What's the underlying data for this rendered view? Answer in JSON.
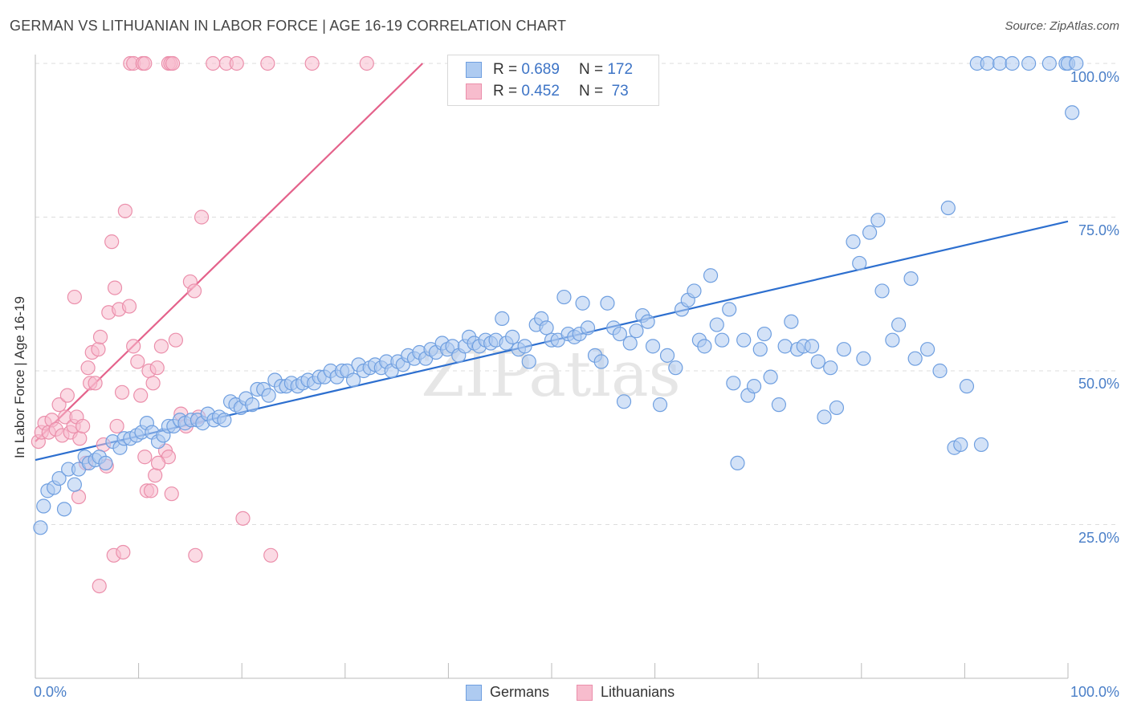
{
  "header": {
    "title": "GERMAN VS LITHUANIAN IN LABOR FORCE | AGE 16-19 CORRELATION CHART",
    "source": "Source: ZipAtlas.com"
  },
  "watermark": "ZIPatlas",
  "colors": {
    "german_fill": "#aecbf1",
    "german_stroke": "#6f9fe0",
    "german_line": "#2d6fcf",
    "lithuanian_fill": "#f7bccd",
    "lithuanian_stroke": "#eb8fab",
    "lithuanian_line": "#e4628b",
    "tick_text": "#4a7fc8",
    "grid": "#dddddd"
  },
  "legend": {
    "rows": [
      {
        "r_label": "R =",
        "r_value": "0.689",
        "n_label": "N =",
        "n_value": "172"
      },
      {
        "r_label": "R =",
        "r_value": "0.452",
        "n_label": "N =",
        "n_value": " 73"
      }
    ],
    "items": [
      "Germans",
      "Lithuanians"
    ]
  },
  "chart_data": {
    "type": "scatter",
    "title": "GERMAN VS LITHUANIAN IN LABOR FORCE | AGE 16-19 CORRELATION CHART",
    "xlabel": "",
    "ylabel": "In Labor Force | Age 16-19",
    "xlim": [
      0,
      100
    ],
    "ylim": [
      0,
      100
    ],
    "x_tick_labels": [
      "0.0%",
      "100.0%"
    ],
    "y_tick_labels": [
      "25.0%",
      "50.0%",
      "75.0%",
      "100.0%"
    ],
    "y_ticks": [
      25,
      50,
      75,
      100
    ],
    "grid": true,
    "legend_position": "top-center",
    "series": [
      {
        "name": "Germans",
        "trend": {
          "x": [
            0,
            100
          ],
          "y": [
            35.5,
            74.3
          ]
        },
        "points": [
          [
            0.5,
            24.5
          ],
          [
            0.8,
            28
          ],
          [
            1.2,
            30.5
          ],
          [
            1.8,
            31
          ],
          [
            2.3,
            32.5
          ],
          [
            2.8,
            27.5
          ],
          [
            3.2,
            34
          ],
          [
            3.8,
            31.5
          ],
          [
            4.2,
            34
          ],
          [
            4.8,
            36
          ],
          [
            5.2,
            35
          ],
          [
            5.8,
            35.5
          ],
          [
            6.2,
            36
          ],
          [
            6.8,
            35
          ],
          [
            7.5,
            38.5
          ],
          [
            8.2,
            37.5
          ],
          [
            8.6,
            39
          ],
          [
            9.2,
            39
          ],
          [
            9.8,
            39.5
          ],
          [
            10.3,
            40
          ],
          [
            10.8,
            41.5
          ],
          [
            11.3,
            40
          ],
          [
            11.9,
            38.5
          ],
          [
            12.4,
            39.5
          ],
          [
            12.9,
            41
          ],
          [
            13.4,
            41
          ],
          [
            14,
            42
          ],
          [
            14.5,
            41.5
          ],
          [
            15.1,
            42
          ],
          [
            15.7,
            42
          ],
          [
            16.2,
            41.5
          ],
          [
            16.7,
            43
          ],
          [
            17.3,
            42
          ],
          [
            17.8,
            42.5
          ],
          [
            18.3,
            42
          ],
          [
            18.9,
            45
          ],
          [
            19.4,
            44.5
          ],
          [
            19.9,
            44
          ],
          [
            20.4,
            45.5
          ],
          [
            21,
            44.5
          ],
          [
            21.5,
            47
          ],
          [
            22.1,
            47
          ],
          [
            22.6,
            46
          ],
          [
            23.2,
            48.5
          ],
          [
            23.8,
            47.5
          ],
          [
            24.3,
            47.5
          ],
          [
            24.8,
            48
          ],
          [
            25.4,
            47.5
          ],
          [
            25.9,
            48
          ],
          [
            26.4,
            48.5
          ],
          [
            27,
            48
          ],
          [
            27.5,
            49
          ],
          [
            28,
            49
          ],
          [
            28.6,
            50
          ],
          [
            29.2,
            49
          ],
          [
            29.7,
            50
          ],
          [
            30.2,
            50
          ],
          [
            30.8,
            48.5
          ],
          [
            31.3,
            51
          ],
          [
            31.8,
            50
          ],
          [
            32.4,
            50.5
          ],
          [
            32.9,
            51
          ],
          [
            33.5,
            50.5
          ],
          [
            34,
            51.5
          ],
          [
            34.5,
            50
          ],
          [
            35.1,
            51.5
          ],
          [
            35.6,
            51
          ],
          [
            36.1,
            52.5
          ],
          [
            36.7,
            52
          ],
          [
            37.2,
            53
          ],
          [
            37.8,
            52
          ],
          [
            38.3,
            53.5
          ],
          [
            38.8,
            53
          ],
          [
            39.4,
            54.5
          ],
          [
            39.9,
            53.5
          ],
          [
            40.4,
            54
          ],
          [
            41,
            52.5
          ],
          [
            41.6,
            54
          ],
          [
            42,
            55.5
          ],
          [
            42.5,
            54.5
          ],
          [
            43,
            54
          ],
          [
            43.6,
            55
          ],
          [
            44.1,
            54.5
          ],
          [
            44.6,
            55
          ],
          [
            45.2,
            58.5
          ],
          [
            45.6,
            54.5
          ],
          [
            46.2,
            55.5
          ],
          [
            46.8,
            53.5
          ],
          [
            47.4,
            54
          ],
          [
            47.8,
            51.5
          ],
          [
            48.5,
            57.5
          ],
          [
            49,
            58.5
          ],
          [
            49.5,
            57
          ],
          [
            50,
            55
          ],
          [
            50.6,
            55
          ],
          [
            51.2,
            62
          ],
          [
            51.6,
            56
          ],
          [
            52.2,
            55.5
          ],
          [
            52.7,
            56
          ],
          [
            53,
            61
          ],
          [
            53.5,
            57
          ],
          [
            54.2,
            52.5
          ],
          [
            54.8,
            51.5
          ],
          [
            55.4,
            61
          ],
          [
            56,
            57
          ],
          [
            56.6,
            56
          ],
          [
            57,
            45
          ],
          [
            57.6,
            54.5
          ],
          [
            58.2,
            56.5
          ],
          [
            58.8,
            59
          ],
          [
            59.3,
            58
          ],
          [
            59.8,
            54
          ],
          [
            60.5,
            44.5
          ],
          [
            61.2,
            52.5
          ],
          [
            62,
            50.5
          ],
          [
            62.6,
            60
          ],
          [
            63.2,
            61.5
          ],
          [
            63.8,
            63
          ],
          [
            64.3,
            55
          ],
          [
            64.8,
            54
          ],
          [
            65.4,
            65.5
          ],
          [
            66,
            57.5
          ],
          [
            66.5,
            55
          ],
          [
            67.2,
            60
          ],
          [
            67.6,
            48
          ],
          [
            68,
            35
          ],
          [
            68.6,
            55
          ],
          [
            69,
            46
          ],
          [
            69.6,
            47.5
          ],
          [
            70.2,
            53.5
          ],
          [
            70.6,
            56
          ],
          [
            71.2,
            49
          ],
          [
            72,
            44.5
          ],
          [
            72.6,
            54
          ],
          [
            73.2,
            58
          ],
          [
            73.8,
            53.5
          ],
          [
            74.4,
            54
          ],
          [
            75.2,
            54
          ],
          [
            75.8,
            51.5
          ],
          [
            76.4,
            42.5
          ],
          [
            77,
            50.5
          ],
          [
            77.6,
            44
          ],
          [
            78.3,
            53.5
          ],
          [
            79.2,
            71
          ],
          [
            79.8,
            67.5
          ],
          [
            80.2,
            52
          ],
          [
            80.8,
            72.5
          ],
          [
            81.6,
            74.5
          ],
          [
            82,
            63
          ],
          [
            83,
            55
          ],
          [
            83.6,
            57.5
          ],
          [
            84.8,
            65
          ],
          [
            85.2,
            52
          ],
          [
            86.4,
            53.5
          ],
          [
            87.6,
            50
          ],
          [
            88.4,
            76.5
          ],
          [
            89,
            37.5
          ],
          [
            89.6,
            38
          ],
          [
            90.2,
            47.5
          ],
          [
            91.6,
            38
          ],
          [
            91.2,
            100
          ],
          [
            92.2,
            100
          ],
          [
            93.4,
            100
          ],
          [
            94.6,
            100
          ],
          [
            96.2,
            100
          ],
          [
            98.2,
            100
          ],
          [
            99.8,
            100
          ],
          [
            100,
            100
          ],
          [
            100.8,
            100
          ],
          [
            100.4,
            92
          ]
        ]
      },
      {
        "name": "Lithuanians",
        "trend": {
          "x": [
            0,
            37.5
          ],
          "y": [
            38.5,
            100
          ]
        },
        "points": [
          [
            0.3,
            38.5
          ],
          [
            0.6,
            40
          ],
          [
            0.9,
            41.5
          ],
          [
            1.3,
            40
          ],
          [
            1.6,
            42
          ],
          [
            2,
            40.5
          ],
          [
            2.3,
            44.5
          ],
          [
            2.6,
            39.5
          ],
          [
            2.9,
            42.5
          ],
          [
            3.1,
            46
          ],
          [
            3.4,
            40
          ],
          [
            3.7,
            41
          ],
          [
            4,
            42.5
          ],
          [
            4.3,
            39
          ],
          [
            4.6,
            41
          ],
          [
            4.9,
            35
          ],
          [
            5.1,
            50.5
          ],
          [
            5.3,
            48
          ],
          [
            5.5,
            53
          ],
          [
            5.8,
            48
          ],
          [
            6.1,
            53.5
          ],
          [
            6.3,
            55.5
          ],
          [
            6.6,
            38
          ],
          [
            6.9,
            34.5
          ],
          [
            7.1,
            59.5
          ],
          [
            7.4,
            71
          ],
          [
            7.7,
            63.5
          ],
          [
            7.9,
            41
          ],
          [
            8.1,
            60
          ],
          [
            8.4,
            46.5
          ],
          [
            8.7,
            76
          ],
          [
            9.1,
            60.5
          ],
          [
            9.5,
            54
          ],
          [
            9.9,
            51.5
          ],
          [
            10.2,
            46
          ],
          [
            10.6,
            36
          ],
          [
            11,
            50
          ],
          [
            11.4,
            48
          ],
          [
            11.8,
            50.5
          ],
          [
            12.2,
            54
          ],
          [
            12.6,
            37
          ],
          [
            12.9,
            36
          ],
          [
            13.2,
            30
          ],
          [
            13.6,
            55
          ],
          [
            14.1,
            43
          ],
          [
            14.6,
            41
          ],
          [
            15,
            64.5
          ],
          [
            15.4,
            63
          ],
          [
            15.8,
            42.5
          ],
          [
            16.1,
            75
          ],
          [
            3.8,
            62
          ],
          [
            4.2,
            29.5
          ],
          [
            6.2,
            15
          ],
          [
            7.6,
            20
          ],
          [
            8.5,
            20.5
          ],
          [
            9.2,
            100
          ],
          [
            9.5,
            100
          ],
          [
            10.4,
            100
          ],
          [
            10.6,
            100
          ],
          [
            10.8,
            30.5
          ],
          [
            11.2,
            30.5
          ],
          [
            11.6,
            33
          ],
          [
            11.9,
            35
          ],
          [
            12.9,
            100
          ],
          [
            13.1,
            100
          ],
          [
            13.3,
            100
          ],
          [
            15.5,
            20
          ],
          [
            17.2,
            100
          ],
          [
            18.5,
            100
          ],
          [
            19.5,
            100
          ],
          [
            20.1,
            26
          ],
          [
            22.5,
            100
          ],
          [
            22.8,
            20
          ],
          [
            26.8,
            100
          ],
          [
            32.1,
            100
          ]
        ]
      }
    ]
  }
}
